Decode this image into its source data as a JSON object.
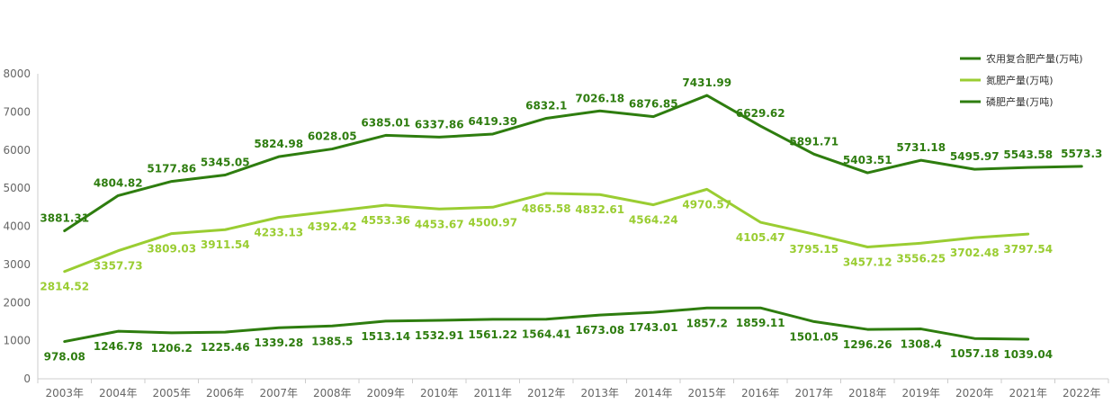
{
  "chart_data": {
    "type": "line",
    "title": "",
    "xlabel": "",
    "ylabel": "",
    "ylim": [
      0,
      8000
    ],
    "yticks": [
      0,
      1000,
      2000,
      3000,
      4000,
      5000,
      6000,
      7000,
      8000
    ],
    "categories": [
      "2003年",
      "2004年",
      "2005年",
      "2006年",
      "2007年",
      "2008年",
      "2009年",
      "2010年",
      "2011年",
      "2012年",
      "2013年",
      "2014年",
      "2015年",
      "2016年",
      "2017年",
      "2018年",
      "2019年",
      "2020年",
      "2021年",
      "2022年"
    ],
    "legend_position": "top-right",
    "grid": false,
    "series": [
      {
        "name": "农用复合肥产量(万吨)",
        "color": "#2e7d0f",
        "label_position": "above",
        "values": [
          3881.31,
          4804.82,
          5177.86,
          5345.05,
          5824.98,
          6028.05,
          6385.01,
          6337.86,
          6419.39,
          6832.1,
          7026.18,
          6876.85,
          7431.99,
          6629.62,
          5891.71,
          5403.51,
          5731.18,
          5495.97,
          5543.58,
          5573.3
        ]
      },
      {
        "name": "氮肥产量(万吨)",
        "color": "#9acd32",
        "label_position": "below",
        "values": [
          2814.52,
          3357.73,
          3809.03,
          3911.54,
          4233.13,
          4392.42,
          4553.36,
          4453.67,
          4500.97,
          4865.58,
          4832.61,
          4564.24,
          4970.57,
          4105.47,
          3795.15,
          3457.12,
          3556.25,
          3702.48,
          3797.54,
          null
        ]
      },
      {
        "name": "磷肥产量(万吨)",
        "color": "#2e7d0f",
        "label_position": "below",
        "values": [
          978.08,
          1246.78,
          1206.2,
          1225.46,
          1339.28,
          1385.5,
          1513.14,
          1532.91,
          1561.22,
          1564.41,
          1673.08,
          1743.01,
          1857.2,
          1859.11,
          1501.05,
          1296.26,
          1308.4,
          1057.18,
          1039.04,
          null
        ]
      }
    ]
  }
}
